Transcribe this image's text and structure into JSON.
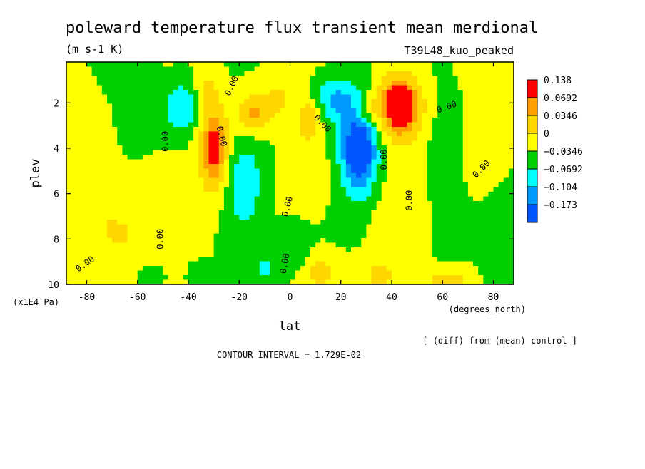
{
  "chart_data": {
    "type": "heatmap",
    "title": "poleward temperature flux transient mean merdional",
    "units": "(m s-1 K)",
    "run_label": "T39L48_kuo_peaked",
    "xlabel": "lat",
    "x_units": "(degrees_north)",
    "ylabel": "plev",
    "y_units": "(x1E4 Pa)",
    "xlim": [
      -88,
      88
    ],
    "ylim": [
      10,
      0.2
    ],
    "x_ticks": [
      "-80",
      "-60",
      "-40",
      "-20",
      "0",
      "20",
      "40",
      "60",
      "80"
    ],
    "x_tick_values": [
      -80,
      -60,
      -40,
      -20,
      0,
      20,
      40,
      60,
      80
    ],
    "y_ticks": [
      "2",
      "4",
      "6",
      "8",
      "10"
    ],
    "y_tick_values": [
      2,
      4,
      6,
      8,
      10
    ],
    "legend": {
      "levels": [
        "0.138",
        "0.0692",
        "0.0346",
        "0",
        "−0.0346",
        "−0.0692",
        "−0.104",
        "−0.173"
      ],
      "colors": [
        "#ff0000",
        "#ff9f00",
        "#ffd700",
        "#ffff00",
        "#00cf00",
        "#00ffff",
        "#0099ff",
        "#0055ff"
      ],
      "color_values": [
        0.1,
        0.05,
        0.017,
        0.005,
        -0.017,
        -0.05,
        -0.085,
        -0.13
      ]
    },
    "contour_labels": [
      {
        "text": "0.00",
        "lon": -80,
        "p": 9.2,
        "angle": -35
      },
      {
        "text": "0.00",
        "lon": -50,
        "p": 8.0,
        "angle": -90
      },
      {
        "text": "0.00",
        "lon": -48,
        "p": 3.7,
        "angle": -90
      },
      {
        "text": "0.00",
        "lon": -28,
        "p": 3.5,
        "angle": 75
      },
      {
        "text": "0.00",
        "lon": -22,
        "p": 1.3,
        "angle": -65
      },
      {
        "text": "0.00",
        "lon": 0,
        "p": 6.6,
        "angle": -75
      },
      {
        "text": "0.00",
        "lon": -1,
        "p": 9.1,
        "angle": -80
      },
      {
        "text": "0.00",
        "lon": 12,
        "p": 3.0,
        "angle": 45
      },
      {
        "text": "0.00",
        "lon": 38,
        "p": 4.5,
        "angle": -90
      },
      {
        "text": "0.00",
        "lon": 48,
        "p": 6.3,
        "angle": -90
      },
      {
        "text": "0.00",
        "lon": 62,
        "p": 2.3,
        "angle": -20
      },
      {
        "text": "0.00",
        "lon": 76,
        "p": 5.0,
        "angle": -45
      }
    ],
    "grid": false,
    "blobs": [
      {
        "lon": -75,
        "p": 5.5,
        "a": 0.028,
        "sx": 14,
        "sy": 3.0
      },
      {
        "lon": -60,
        "p": 8.5,
        "a": 0.022,
        "sx": 12,
        "sy": 1.5
      },
      {
        "lon": -66,
        "p": 3.0,
        "a": -0.022,
        "sx": 10,
        "sy": 2.0
      },
      {
        "lon": -42,
        "p": 2.2,
        "a": -0.065,
        "sx": 5,
        "sy": 0.8
      },
      {
        "lon": -30,
        "p": 4.0,
        "a": 0.12,
        "sx": 4,
        "sy": 1.3
      },
      {
        "lon": -33,
        "p": 1.5,
        "a": 0.05,
        "sx": 3,
        "sy": 0.5
      },
      {
        "lon": -18,
        "p": 5.8,
        "a": -0.06,
        "sx": 5,
        "sy": 1.5
      },
      {
        "lon": -15,
        "p": 2.5,
        "a": 0.07,
        "sx": 4,
        "sy": 0.6
      },
      {
        "lon": -5,
        "p": 1.8,
        "a": 0.035,
        "sx": 6,
        "sy": 0.8
      },
      {
        "lon": 5,
        "p": 5.0,
        "a": 0.02,
        "sx": 6,
        "sy": 2.5
      },
      {
        "lon": 8,
        "p": 2.7,
        "a": 0.06,
        "sx": 3,
        "sy": 0.6
      },
      {
        "lon": 18,
        "p": 1.8,
        "a": -0.07,
        "sx": 6,
        "sy": 0.7
      },
      {
        "lon": 27,
        "p": 4.1,
        "a": -0.16,
        "sx": 5,
        "sy": 1.3
      },
      {
        "lon": 30,
        "p": 2.3,
        "a": 0.05,
        "sx": 3,
        "sy": 0.4
      },
      {
        "lon": 43,
        "p": 2.1,
        "a": 0.15,
        "sx": 6,
        "sy": 0.9
      },
      {
        "lon": 45,
        "p": 6.5,
        "a": 0.03,
        "sx": 7,
        "sy": 2.5
      },
      {
        "lon": 62,
        "p": 5.0,
        "a": -0.025,
        "sx": 6,
        "sy": 2.5
      },
      {
        "lon": 75,
        "p": 3.5,
        "a": 0.025,
        "sx": 7,
        "sy": 2.0
      },
      {
        "lon": 82,
        "p": 8.0,
        "a": -0.018,
        "sx": 6,
        "sy": 2.0
      },
      {
        "lon": -55,
        "p": 9.6,
        "a": -0.05,
        "sx": 4,
        "sy": 0.4
      },
      {
        "lon": -35,
        "p": 9.6,
        "a": -0.03,
        "sx": 4,
        "sy": 0.4
      },
      {
        "lon": 12,
        "p": 9.5,
        "a": 0.06,
        "sx": 3,
        "sy": 0.5
      },
      {
        "lon": 35,
        "p": 9.6,
        "a": 0.05,
        "sx": 4,
        "sy": 0.5
      },
      {
        "lon": 62,
        "p": 9.9,
        "a": 0.06,
        "sx": 6,
        "sy": 0.4
      },
      {
        "lon": 2,
        "p": 8.0,
        "a": -0.03,
        "sx": 5,
        "sy": 0.8
      },
      {
        "lon": -10,
        "p": 9.3,
        "a": -0.035,
        "sx": 4,
        "sy": 0.5
      }
    ]
  },
  "footer": {
    "diff_note": "[ (diff) from (mean) control ]",
    "contour_interval": "CONTOUR INTERVAL = 1.729E-02"
  }
}
